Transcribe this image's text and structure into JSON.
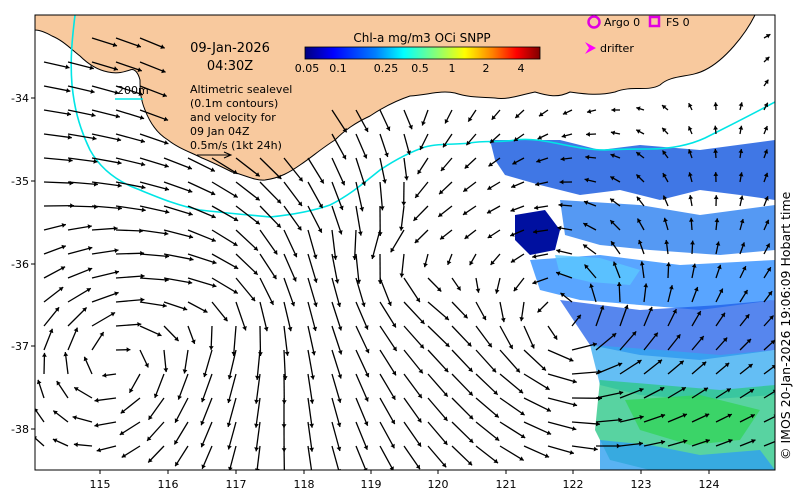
{
  "date": "09-Jan-2026",
  "time": "04:30Z",
  "colorbar": {
    "title": "Chl-a mg/m3 OCi SNPP",
    "ticks": [
      "0.05",
      "0.1",
      "0.25",
      "0.5",
      "1",
      "2",
      "4"
    ],
    "colors": [
      "#00007f",
      "#0000ff",
      "#007fff",
      "#00ffff",
      "#7fff7f",
      "#ffff00",
      "#ff7f00",
      "#ff0000",
      "#7f0000"
    ]
  },
  "legend": {
    "argo": "Argo 0",
    "fs": "FS 0",
    "drifter": "drifter",
    "argo_color": "#e000e0",
    "drifter_color": "#ff00ff"
  },
  "isobath": {
    "label": "200m",
    "color": "#00e5e5"
  },
  "description_lines": [
    "Altimetric sealevel",
    "(0.1m contours)",
    "and velocity for",
    "09 Jan 04Z",
    "0.5m/s (1kt 24h)"
  ],
  "axes": {
    "x_ticks": [
      "115",
      "116",
      "117",
      "118",
      "119",
      "120",
      "121",
      "122",
      "123",
      "124"
    ],
    "y_ticks": [
      "-34",
      "-35",
      "-36",
      "-37",
      "-38"
    ]
  },
  "land_color": "#f8c99e",
  "copyright": "© IMOS 20-Jan-2026 19:06:09 Hobart time"
}
